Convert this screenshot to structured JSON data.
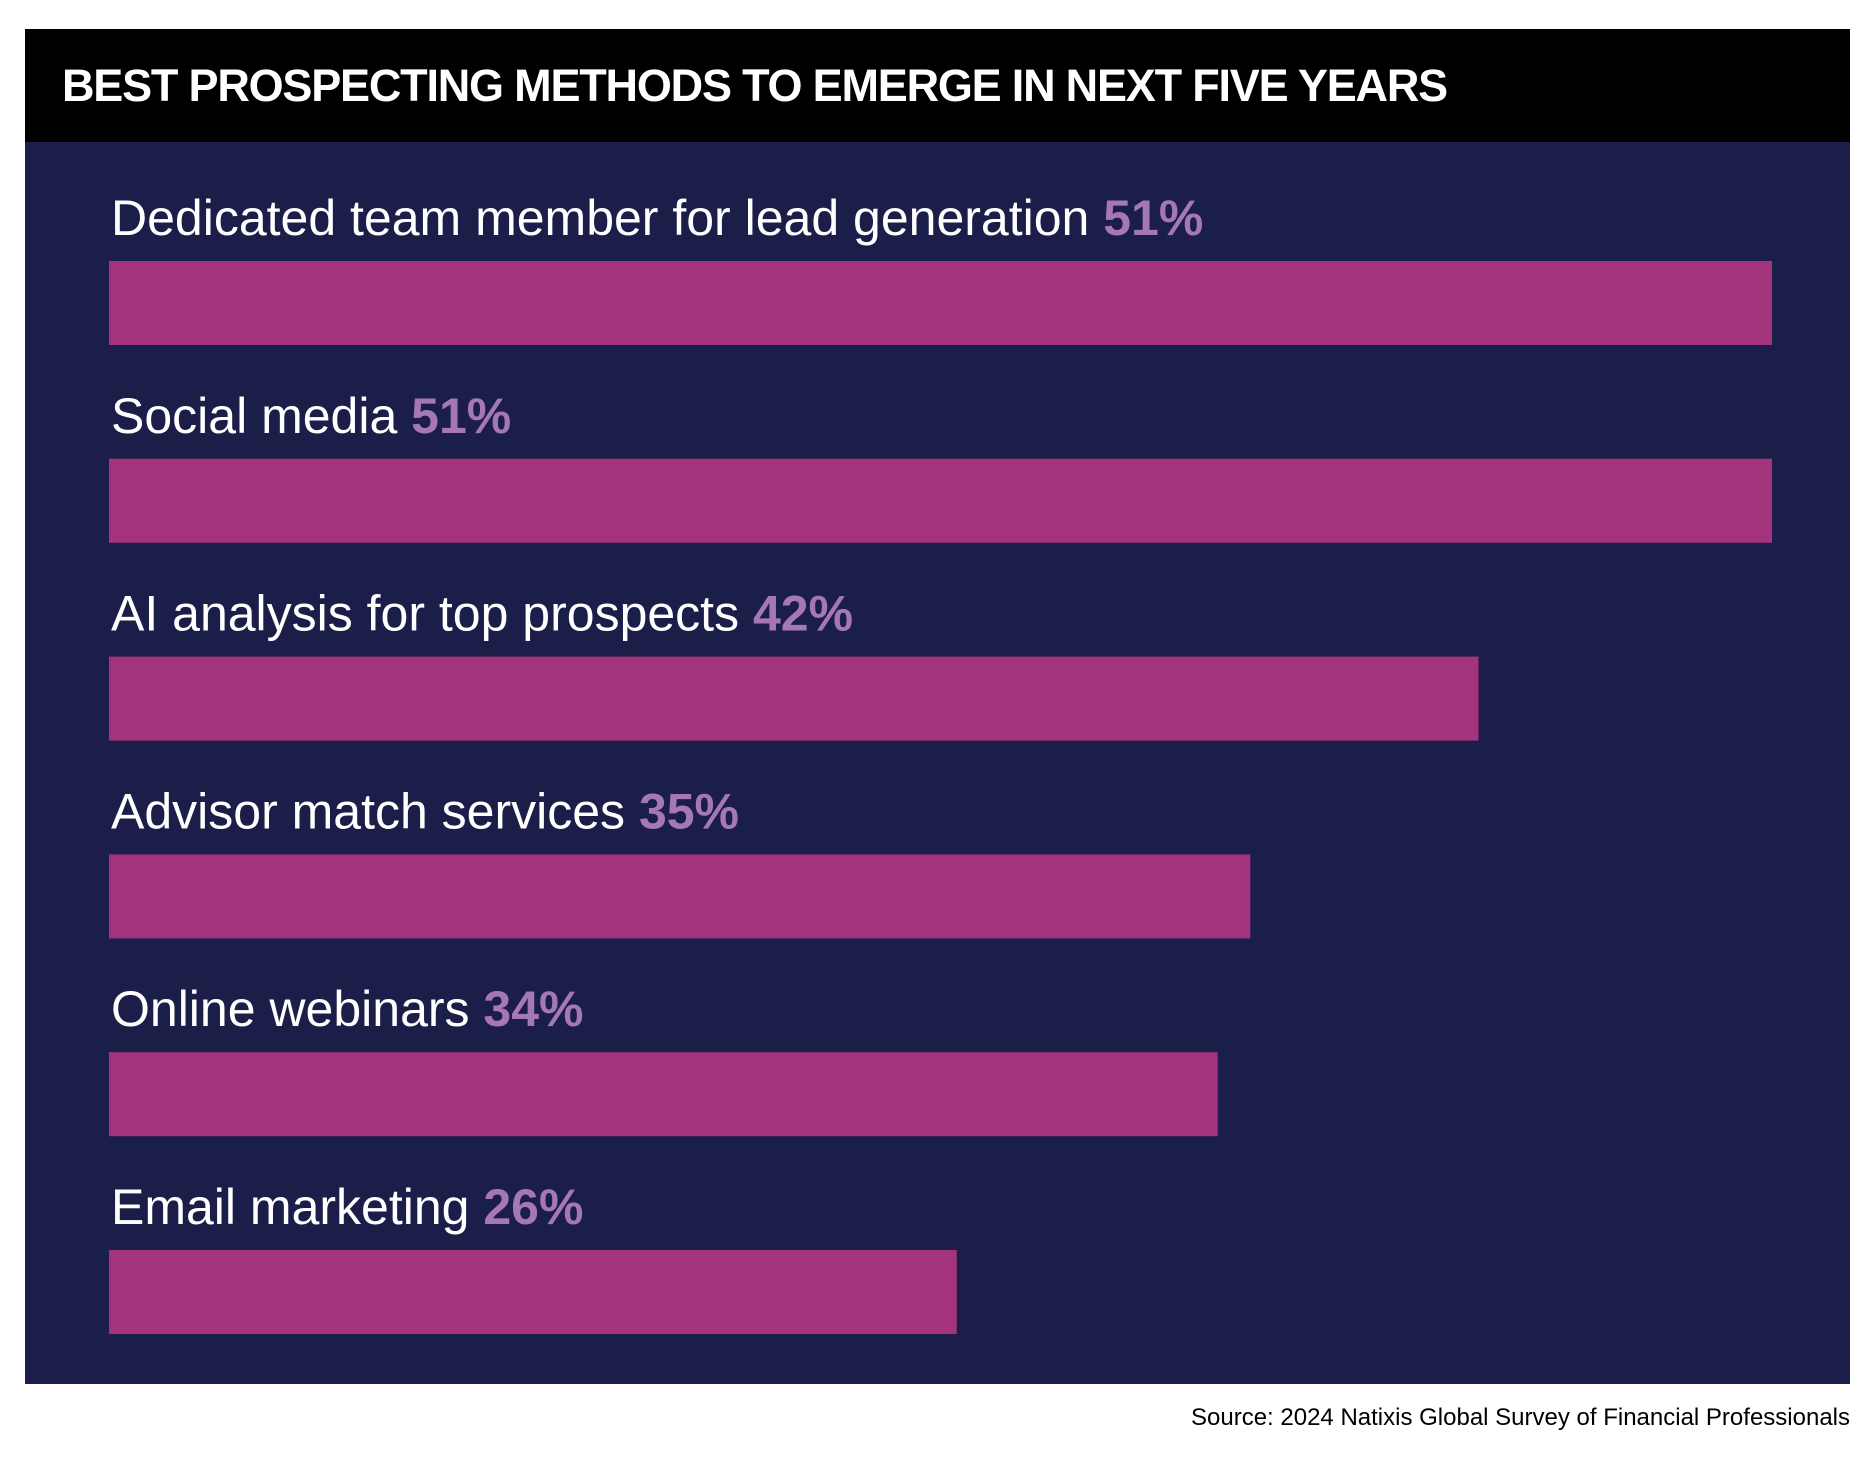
{
  "title": "BEST PROSPECTING METHODS TO EMERGE IN NEXT FIVE YEARS",
  "source": "Source: 2024 Natixis Global Survey of Financial Professionals",
  "colors": {
    "panel": "#1c1e4a",
    "bar": "#a3337c",
    "pct": "#a677b7",
    "label": "#ffffff",
    "title_bar": "#000000"
  },
  "chart_data": {
    "type": "bar",
    "orientation": "horizontal",
    "title": "BEST PROSPECTING METHODS TO EMERGE IN NEXT FIVE YEARS",
    "categories": [
      "Dedicated team member for lead generation",
      "Social media",
      "AI analysis for top prospects",
      "Advisor match services",
      "Online webinars",
      "Email marketing"
    ],
    "values": [
      51,
      51,
      42,
      35,
      34,
      26
    ],
    "value_labels": [
      "51%",
      "51%",
      "42%",
      "35%",
      "34%",
      "26%"
    ],
    "unit": "%",
    "grid": false,
    "legend": "none"
  }
}
